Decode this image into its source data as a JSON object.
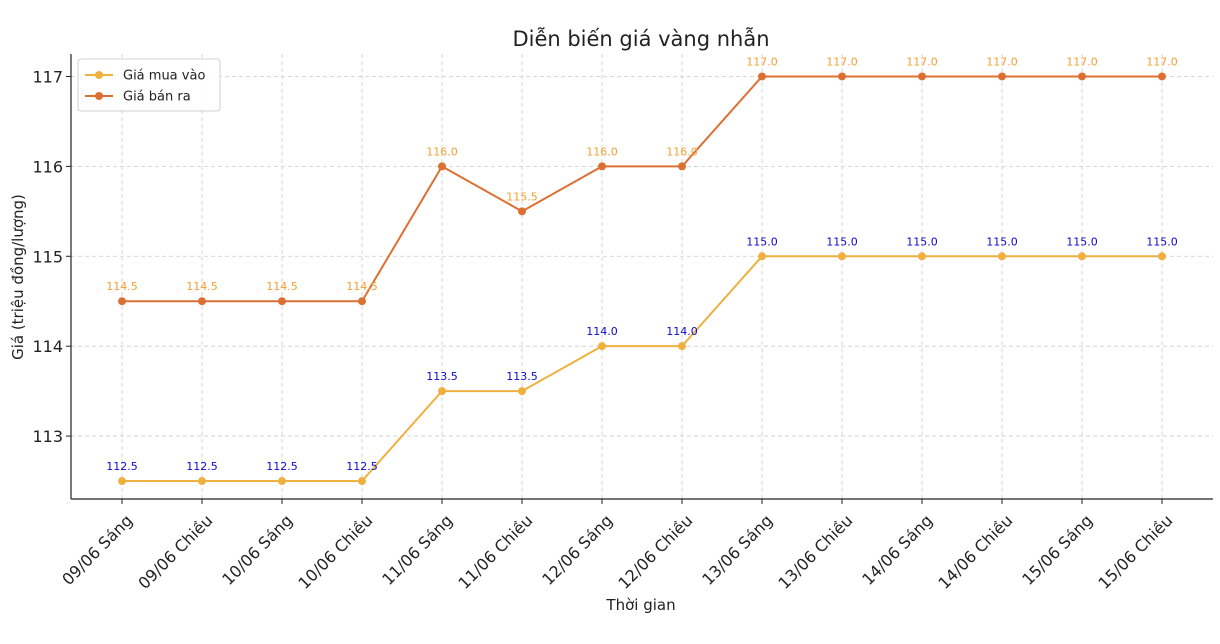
{
  "chart_data": {
    "type": "line",
    "title": "Diễn biến giá vàng nhẫn",
    "xlabel": "Thời gian",
    "ylabel": "Giá (triệu đồng/lượng)",
    "categories": [
      "09/06 Sáng",
      "09/06 Chiều",
      "10/06 Sáng",
      "10/06 Chiều",
      "11/06 Sáng",
      "11/06 Chiều",
      "12/06 Sáng",
      "12/06 Chiều",
      "13/06 Sáng",
      "13/06 Chiều",
      "14/06 Sáng",
      "14/06 Chiều",
      "15/06 Sáng",
      "15/06 Chiều"
    ],
    "yticks": [
      113,
      114,
      115,
      116,
      117
    ],
    "ylim": [
      112.3,
      117.25
    ],
    "grid": true,
    "legend_position": "top-left",
    "series": [
      {
        "name": "Giá mua vào",
        "color": "#f0b040",
        "label_color": "#0a0acc",
        "values": [
          112.5,
          112.5,
          112.5,
          112.5,
          113.5,
          113.5,
          114.0,
          114.0,
          115.0,
          115.0,
          115.0,
          115.0,
          115.0,
          115.0
        ],
        "labels": [
          "112.5",
          "112.5",
          "112.5",
          "112.5",
          "113.5",
          "113.5",
          "114.0",
          "114.0",
          "115.0",
          "115.0",
          "115.0",
          "115.0",
          "115.0",
          "115.0"
        ]
      },
      {
        "name": "Giá bán ra",
        "color": "#dc7033",
        "label_color": "#f0a030",
        "values": [
          114.5,
          114.5,
          114.5,
          114.5,
          116.0,
          115.5,
          116.0,
          116.0,
          117.0,
          117.0,
          117.0,
          117.0,
          117.0,
          117.0
        ],
        "labels": [
          "114.5",
          "114.5",
          "114.5",
          "114.5",
          "116.0",
          "115.5",
          "116.0",
          "116.0",
          "117.0",
          "117.0",
          "117.0",
          "117.0",
          "117.0",
          "117.0"
        ]
      }
    ]
  }
}
